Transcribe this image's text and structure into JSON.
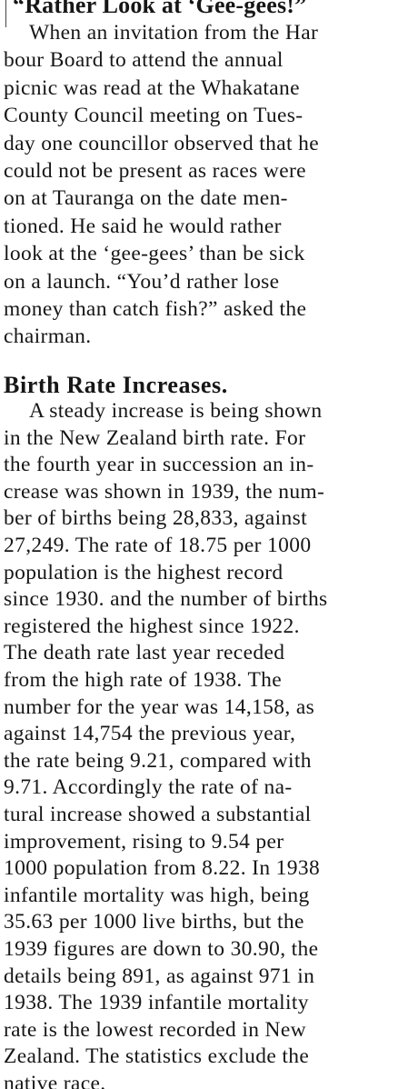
{
  "article_1": {
    "heading": "“Rather Look at ‘Gee-gees!”",
    "lines": [
      "When an invitation from the Har",
      "bour Board to attend the annual",
      "picnic was read at the Whakatane",
      "County Council meeting on Tues-",
      "day one councillor observed that he",
      "could not be present as races were",
      "on at Tauranga on the date men-",
      "tioned.  He said he would rather",
      "look at the ‘gee-gees’ than be sick",
      "on a launch.  “You’d rather lose",
      "money than catch fish?” asked the",
      "chairman."
    ]
  },
  "article_2": {
    "heading": "Birth Rate Increases.",
    "lines": [
      "A steady increase is being shown",
      "in the New Zealand birth rate. For",
      "the fourth year in succession an in-",
      "crease was shown in 1939, the num-",
      "ber of births being 28,833, against",
      "27,249. The rate of 18.75 per 1000",
      "population is the highest  record",
      "since 1930. and the number of births",
      "registered the highest since 1922.",
      "The death rate last year receded",
      "from the high rate of 1938.   The",
      "number for the year was 14,158, as",
      "against 14,754 the previous  year,",
      "the rate being 9.21, compared with",
      "9.71. Accordingly the rate of na-",
      "tural increase showed a substantial",
      "improvement, rising to  9.54  per",
      "1000 population from 8.22. In 1938",
      "infantile mortality was high, being",
      "35.63 per 1000 live births, but the",
      "1939 figures are down to 30.90, the",
      "details being 891, as against 971 in",
      "1938. The 1939 infantile mortality",
      "rate is the lowest recorded in New",
      "Zealand. The statistics exclude the",
      "native race."
    ]
  }
}
